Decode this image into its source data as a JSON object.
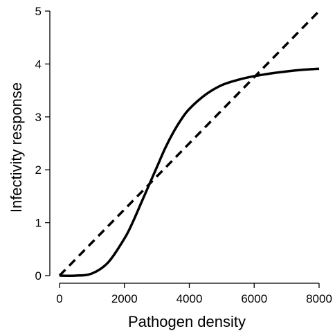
{
  "chart_data": {
    "type": "line",
    "title": "",
    "xlabel": "Pathogen density",
    "ylabel": "Infectivity response",
    "xlim": [
      0,
      8000
    ],
    "ylim": [
      0,
      5
    ],
    "x_ticks": [
      0,
      2000,
      4000,
      6000,
      8000
    ],
    "y_ticks": [
      0,
      1,
      2,
      3,
      4,
      5
    ],
    "x_tick_labels": [
      "0",
      "2000",
      "4000",
      "6000",
      "8000"
    ],
    "y_tick_labels": [
      "0",
      "1",
      "2",
      "3",
      "4",
      "5"
    ],
    "grid": false,
    "legend": "none",
    "series": [
      {
        "style": "solid",
        "color": "#000000",
        "x": [
          0,
          500,
          1000,
          1500,
          2000,
          2250,
          2500,
          2750,
          3000,
          3250,
          3500,
          3750,
          4000,
          4500,
          5000,
          5500,
          6000,
          6500,
          7000,
          7500,
          8000
        ],
        "y": [
          0.0,
          0.0,
          0.04,
          0.25,
          0.7,
          1.0,
          1.35,
          1.7,
          2.05,
          2.4,
          2.7,
          2.95,
          3.15,
          3.42,
          3.6,
          3.7,
          3.77,
          3.82,
          3.86,
          3.89,
          3.91
        ]
      },
      {
        "style": "dashed",
        "color": "#000000",
        "x": [
          0,
          8000
        ],
        "y": [
          0,
          5
        ]
      }
    ]
  }
}
